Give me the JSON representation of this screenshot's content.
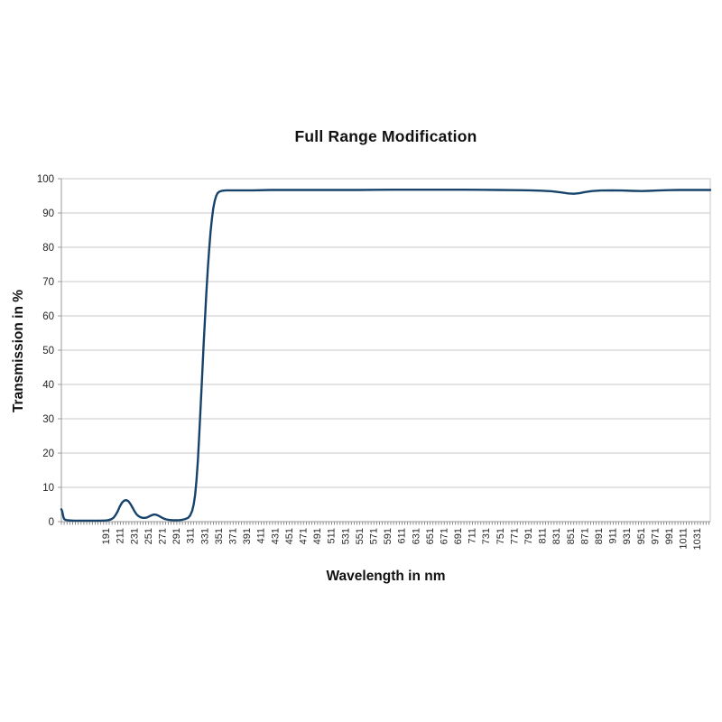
{
  "page": {
    "background": "#ffffff"
  },
  "colors": {
    "line": "#17436B",
    "grid": "#C8C8C8",
    "axis": "#9B9B9B",
    "minor_tick": "#6E6E6E",
    "tick_text": "#262626",
    "plot_background": "#FFFFFF"
  },
  "chart_data": {
    "type": "line",
    "title": "Full Range Modification",
    "xlabel": "Wavelength in nm",
    "ylabel": "Transmission in %",
    "xlim": [
      128,
      1050
    ],
    "ylim": [
      0,
      100
    ],
    "grid": "horizontal-on",
    "legend": "none",
    "x_tick_rotation": -90,
    "x_ticks": [
      191,
      211,
      231,
      251,
      271,
      291,
      311,
      331,
      351,
      371,
      391,
      411,
      431,
      451,
      471,
      491,
      511,
      531,
      551,
      571,
      591,
      611,
      631,
      651,
      671,
      691,
      711,
      731,
      751,
      771,
      791,
      811,
      831,
      851,
      871,
      891,
      911,
      931,
      951,
      971,
      991,
      1011,
      1031
    ],
    "y_ticks": [
      0,
      10,
      20,
      30,
      40,
      50,
      60,
      70,
      80,
      90,
      100
    ],
    "series": [
      {
        "name": "Transmission",
        "color": "#17436B",
        "points": [
          [
            128,
            3.6
          ],
          [
            129,
            3.1
          ],
          [
            130,
            2.2
          ],
          [
            131,
            1.3
          ],
          [
            132,
            0.8
          ],
          [
            134,
            0.5
          ],
          [
            137,
            0.4
          ],
          [
            141,
            0.33
          ],
          [
            146,
            0.3
          ],
          [
            152,
            0.3
          ],
          [
            158,
            0.3
          ],
          [
            164,
            0.3
          ],
          [
            170,
            0.3
          ],
          [
            176,
            0.3
          ],
          [
            182,
            0.3
          ],
          [
            187,
            0.32
          ],
          [
            191,
            0.35
          ],
          [
            195,
            0.45
          ],
          [
            199,
            0.7
          ],
          [
            202,
            1.1
          ],
          [
            205,
            1.9
          ],
          [
            208,
            3.0
          ],
          [
            211,
            4.4
          ],
          [
            214,
            5.5
          ],
          [
            217,
            6.1
          ],
          [
            220,
            6.3
          ],
          [
            223,
            6.0
          ],
          [
            226,
            5.2
          ],
          [
            229,
            4.1
          ],
          [
            232,
            3.0
          ],
          [
            235,
            2.1
          ],
          [
            238,
            1.55
          ],
          [
            241,
            1.25
          ],
          [
            244,
            1.1
          ],
          [
            247,
            1.1
          ],
          [
            250,
            1.25
          ],
          [
            253,
            1.55
          ],
          [
            256,
            1.85
          ],
          [
            259,
            2.05
          ],
          [
            262,
            2.05
          ],
          [
            265,
            1.85
          ],
          [
            268,
            1.5
          ],
          [
            271,
            1.15
          ],
          [
            274,
            0.85
          ],
          [
            277,
            0.65
          ],
          [
            281,
            0.5
          ],
          [
            286,
            0.42
          ],
          [
            291,
            0.4
          ],
          [
            296,
            0.45
          ],
          [
            300,
            0.55
          ],
          [
            304,
            0.75
          ],
          [
            308,
            1.1
          ],
          [
            311,
            1.8
          ],
          [
            314,
            3.2
          ],
          [
            316,
            5.0
          ],
          [
            318,
            7.8
          ],
          [
            320,
            12
          ],
          [
            322,
            18
          ],
          [
            324,
            25.5
          ],
          [
            326,
            34
          ],
          [
            328,
            42.5
          ],
          [
            330,
            51
          ],
          [
            332,
            59
          ],
          [
            334,
            66.5
          ],
          [
            336,
            73.5
          ],
          [
            338,
            79.5
          ],
          [
            340,
            84.5
          ],
          [
            342,
            88.5
          ],
          [
            344,
            91.5
          ],
          [
            346,
            93.6
          ],
          [
            348,
            95.0
          ],
          [
            350,
            95.8
          ],
          [
            353,
            96.3
          ],
          [
            357,
            96.5
          ],
          [
            362,
            96.6
          ],
          [
            370,
            96.6
          ],
          [
            385,
            96.6
          ],
          [
            400,
            96.6
          ],
          [
            425,
            96.7
          ],
          [
            450,
            96.7
          ],
          [
            475,
            96.7
          ],
          [
            500,
            96.7
          ],
          [
            525,
            96.7
          ],
          [
            550,
            96.7
          ],
          [
            575,
            96.75
          ],
          [
            600,
            96.8
          ],
          [
            625,
            96.8
          ],
          [
            650,
            96.8
          ],
          [
            675,
            96.8
          ],
          [
            700,
            96.8
          ],
          [
            725,
            96.75
          ],
          [
            750,
            96.7
          ],
          [
            775,
            96.65
          ],
          [
            795,
            96.6
          ],
          [
            810,
            96.5
          ],
          [
            825,
            96.35
          ],
          [
            838,
            96.0
          ],
          [
            848,
            95.7
          ],
          [
            856,
            95.6
          ],
          [
            864,
            95.75
          ],
          [
            872,
            96.1
          ],
          [
            882,
            96.4
          ],
          [
            895,
            96.55
          ],
          [
            910,
            96.6
          ],
          [
            925,
            96.55
          ],
          [
            940,
            96.45
          ],
          [
            952,
            96.4
          ],
          [
            962,
            96.45
          ],
          [
            975,
            96.55
          ],
          [
            990,
            96.65
          ],
          [
            1005,
            96.7
          ],
          [
            1020,
            96.7
          ],
          [
            1035,
            96.7
          ],
          [
            1050,
            96.7
          ]
        ]
      }
    ]
  }
}
